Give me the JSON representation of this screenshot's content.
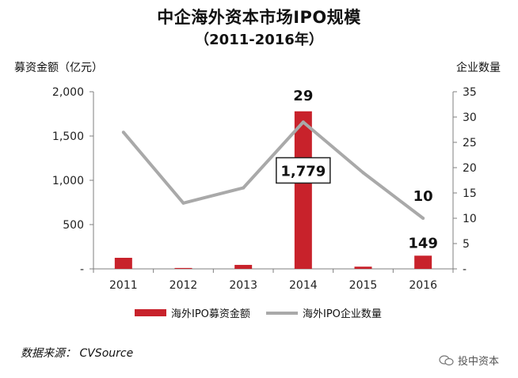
{
  "colors": {
    "bar": "#c8222b",
    "line": "#a9a9a9",
    "axis": "#7f7f7f"
  },
  "source_text": "数据来源： CVSource",
  "watermark_text": "投中资本",
  "chart_data": {
    "type": "bar",
    "title": "中企海外资本市场IPO规模",
    "subtitle": "（2011-2016年）",
    "ylabel_left": "募资金额（亿元）",
    "ylabel_right": "企业数量",
    "categories": [
      "2011",
      "2012",
      "2013",
      "2014",
      "2015",
      "2016"
    ],
    "ylim_left": [
      0,
      2000
    ],
    "yticks_left": [
      0,
      500,
      1000,
      1500,
      2000
    ],
    "ytick_labels_left": [
      "-",
      "500",
      "1,000",
      "1,500",
      "2,000"
    ],
    "ylim_right": [
      0,
      35
    ],
    "yticks_right": [
      0,
      5,
      10,
      15,
      20,
      25,
      30,
      35
    ],
    "ytick_labels_right": [
      "-",
      "5",
      "10",
      "15",
      "20",
      "25",
      "30",
      "35"
    ],
    "series": [
      {
        "name": "海外IPO募资金额",
        "kind": "bar",
        "axis": "left",
        "values": [
          125,
          10,
          45,
          1779,
          25,
          149
        ]
      },
      {
        "name": "海外IPO企业数量",
        "kind": "line",
        "axis": "right",
        "values": [
          27,
          13,
          16,
          29,
          19,
          10
        ]
      }
    ],
    "annotations": [
      {
        "text": "29",
        "series": 1,
        "index": 3
      },
      {
        "text": "10",
        "series": 1,
        "index": 5
      },
      {
        "text": "1,779",
        "series": 0,
        "index": 3,
        "boxed": true
      },
      {
        "text": "149",
        "series": 0,
        "index": 5
      }
    ],
    "legend_position": "bottom"
  }
}
